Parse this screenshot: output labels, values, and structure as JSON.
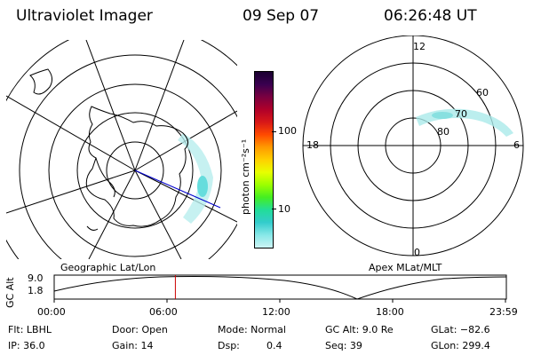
{
  "header": {
    "title": "Ultraviolet Imager",
    "date": "09 Sep 07",
    "time": "06:26:48 UT"
  },
  "left_panel": {
    "caption": "Geographic Lat/Lon"
  },
  "right_panel": {
    "caption": "Apex MLat/MLT",
    "mlt_labels": [
      "12",
      "18",
      "6",
      "0"
    ],
    "lat_labels": [
      "60",
      "70",
      "80"
    ]
  },
  "colorbar": {
    "unit_label": "photon cm⁻²s⁻¹",
    "tick_labels": [
      "100",
      "10"
    ],
    "colors": [
      "#1a0030",
      "#3a0050",
      "#7a0040",
      "#b0002a",
      "#d81818",
      "#ff4a00",
      "#ff9a00",
      "#ffd000",
      "#e8ff00",
      "#9cff00",
      "#44ee22",
      "#22dd99",
      "#33cccc",
      "#88e8e8",
      "#ccf4f4"
    ]
  },
  "altitude_plot": {
    "y_label": "GC Alt",
    "y_max": "9.0",
    "y_min": "1.8",
    "x_ticks": [
      "00:00",
      "06:00",
      "12:00",
      "18:00",
      "23:59"
    ],
    "marker_time_fraction": 0.268
  },
  "info": {
    "filter": "Flt: LBHL",
    "door": "Door: Open",
    "mode": "Mode: Normal",
    "gc_alt": "GC Alt: 9.0 Re",
    "glat": "GLat: −82.6",
    "ip": "IP: 36.0",
    "gain": "Gain: 14",
    "dsp_label": "Dsp:",
    "dsp_value": "0.4",
    "seq": "Seq: 39",
    "glon": "GLon: 299.4"
  }
}
